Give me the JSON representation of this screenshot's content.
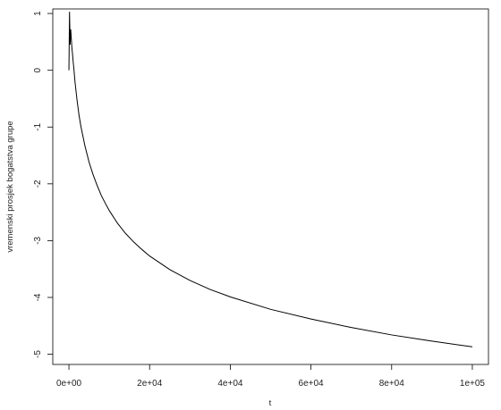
{
  "chart_data": {
    "type": "line",
    "title": "",
    "xlabel": "t",
    "ylabel": "vremenski prosjek bogatstva grupe",
    "xlim": [
      -4000,
      104000
    ],
    "ylim": [
      -5.18,
      1.08
    ],
    "x_ticks": [
      0,
      20000,
      40000,
      60000,
      80000,
      100000
    ],
    "x_tick_labels": [
      "0e+00",
      "2e+04",
      "4e+04",
      "6e+04",
      "8e+04",
      "1e+05"
    ],
    "y_ticks": [
      -5,
      -4,
      -3,
      -2,
      -1,
      0,
      1
    ],
    "y_tick_labels": [
      "-5",
      "-4",
      "-3",
      "-2",
      "-1",
      "0",
      "1"
    ],
    "grid": false,
    "legend": "none",
    "line_color": "#000000",
    "series": [
      {
        "x": [
          0,
          150,
          300,
          450,
          600,
          750,
          900,
          1050,
          1200,
          1500,
          2000,
          2500,
          3000,
          4000,
          5000,
          6000,
          7000,
          8000,
          9000,
          10000,
          12000,
          14000,
          16000,
          18000,
          20000,
          25000,
          30000,
          35000,
          40000,
          50000,
          60000,
          70000,
          80000,
          90000,
          100000
        ],
        "values": [
          0.0,
          1.03,
          0.45,
          0.72,
          0.55,
          0.38,
          0.28,
          0.15,
          0.05,
          -0.2,
          -0.52,
          -0.79,
          -1.0,
          -1.34,
          -1.62,
          -1.84,
          -2.03,
          -2.2,
          -2.34,
          -2.47,
          -2.69,
          -2.87,
          -3.02,
          -3.15,
          -3.27,
          -3.51,
          -3.7,
          -3.86,
          -3.99,
          -4.21,
          -4.38,
          -4.53,
          -4.66,
          -4.77,
          -4.87
        ]
      }
    ]
  }
}
